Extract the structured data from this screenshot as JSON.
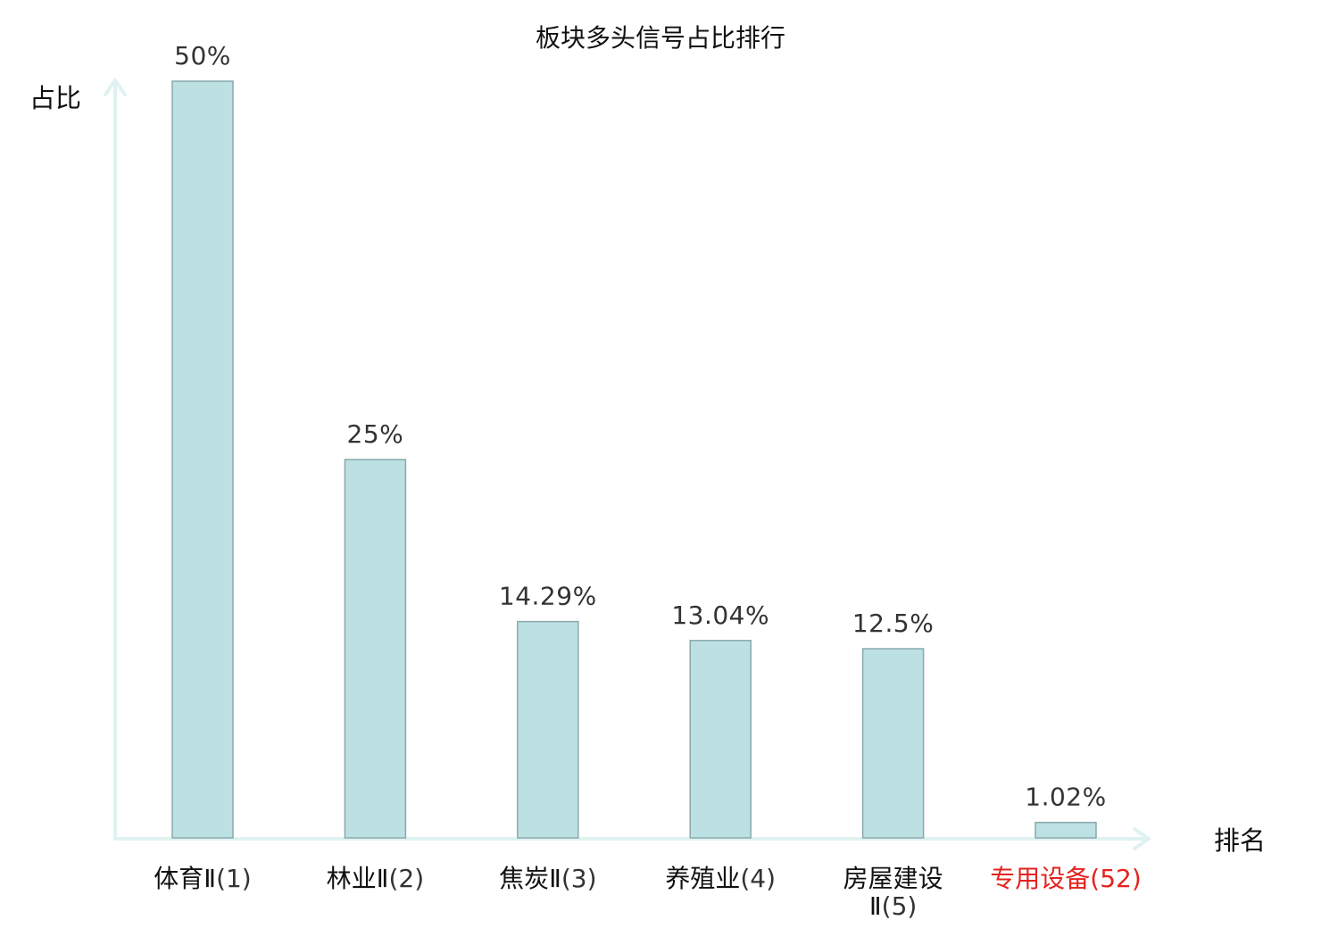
{
  "chart_data": {
    "type": "bar",
    "title": "板块多头信号占比排行",
    "xlabel": "排名",
    "ylabel": "占比",
    "ylim": [
      0,
      50
    ],
    "grid": false,
    "legend": "none",
    "categories": [
      {
        "name": "体育Ⅱ",
        "rank": "(1)",
        "highlight": false
      },
      {
        "name": "林业Ⅱ",
        "rank": "(2)",
        "highlight": false
      },
      {
        "name": "焦炭Ⅱ",
        "rank": "(3)",
        "highlight": false
      },
      {
        "name": "养殖业",
        "rank": "(4)",
        "highlight": false
      },
      {
        "name": "房屋建设",
        "name_line2": "Ⅱ",
        "rank": "(5)",
        "highlight": false
      },
      {
        "name": "专用设备",
        "rank": "(52)",
        "highlight": true
      }
    ],
    "values": [
      50,
      25,
      14.29,
      13.04,
      12.5,
      1.02
    ],
    "value_labels": [
      "50%",
      "25%",
      "14.29%",
      "13.04%",
      "12.5%",
      "1.02%"
    ],
    "colors": {
      "bar_fill": "#bde0e3",
      "bar_stroke": "#8aa9ac",
      "axis": "#dff2f0",
      "label_default": "#111111",
      "rank_default": "#333333",
      "highlight": "#e4231f"
    }
  }
}
